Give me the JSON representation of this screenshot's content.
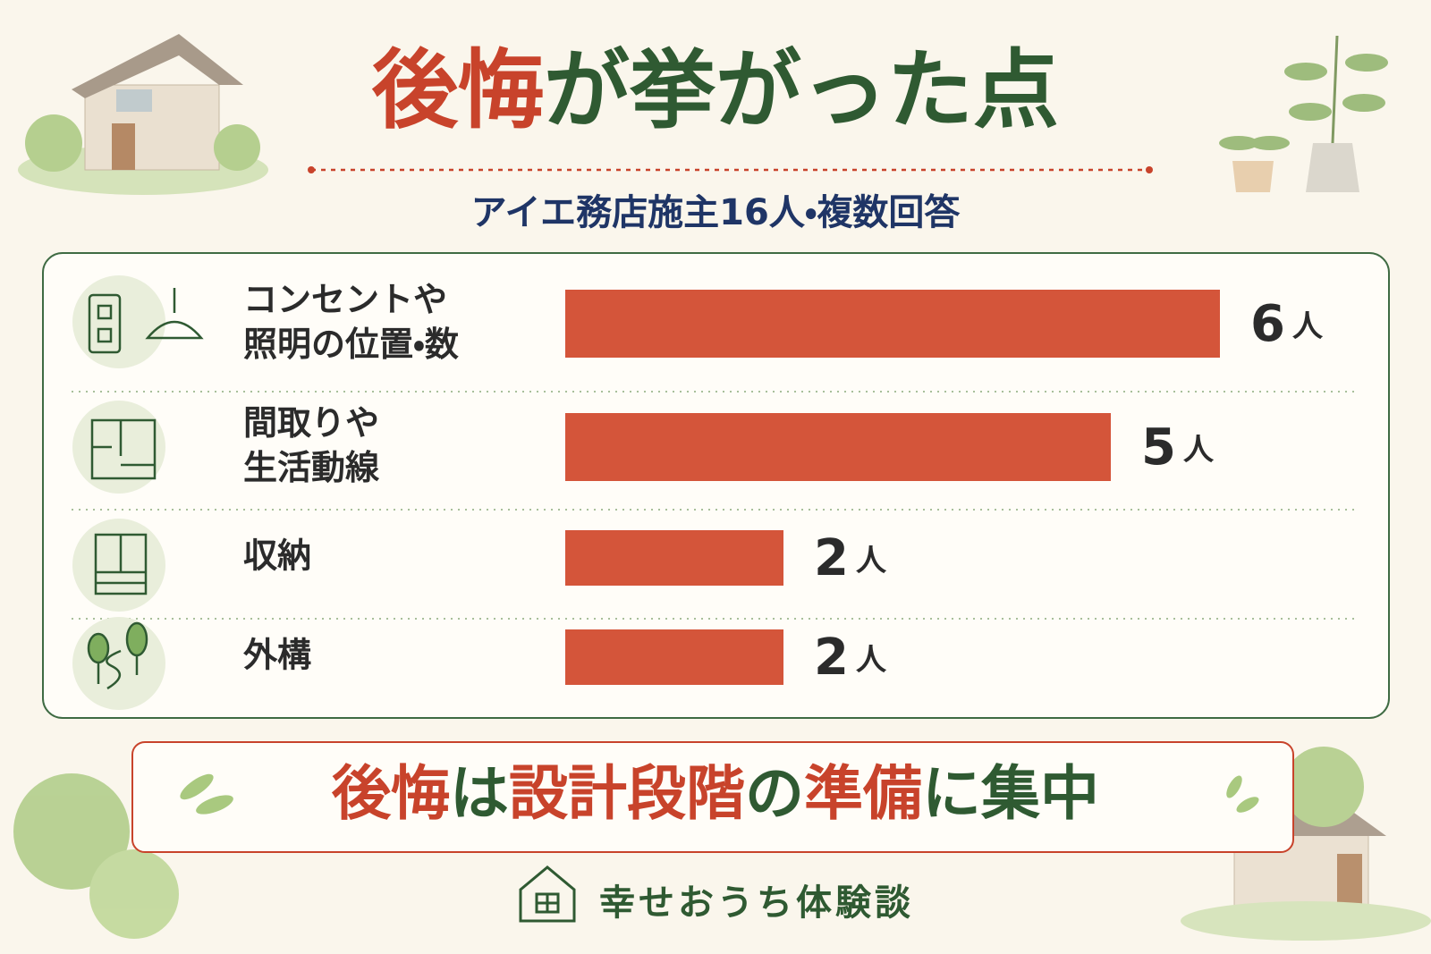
{
  "chart_data": {
    "type": "bar",
    "orientation": "horizontal",
    "title": [
      {
        "text": "後悔",
        "color": "#c8432b"
      },
      {
        "text": "が挙がった点",
        "color": "#2f5a32"
      }
    ],
    "subtitle": "アイエ務店施主16人・複数回答",
    "categories": [
      "コンセントや\n照明の位置・数",
      "間取りや\n生活動線",
      "収納",
      "外構"
    ],
    "values": [
      6,
      5,
      2,
      2
    ],
    "value_labels": [
      "6人",
      "5人",
      "2人",
      "2人"
    ],
    "color": "#d4553a",
    "conclusion": [
      {
        "text": "後悔",
        "color": "#c8432b"
      },
      {
        "text": "は",
        "color": "#2f5a32"
      },
      {
        "text": "設計段階",
        "color": "#c8432b"
      },
      {
        "text": "の",
        "color": "#2f5a32"
      },
      {
        "text": "準備",
        "color": "#c8432b"
      },
      {
        "text": "に集中",
        "color": "#2f5a32"
      }
    ],
    "footer": "幸せおうち体験談"
  }
}
